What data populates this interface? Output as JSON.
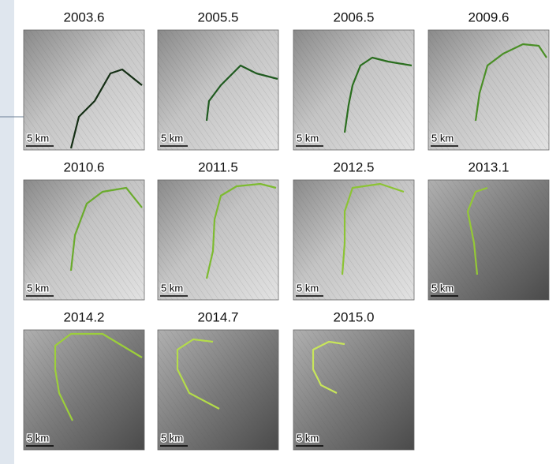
{
  "panels": [
    {
      "year": "2003.6",
      "scale": "5 km"
    },
    {
      "year": "2005.5",
      "scale": "5 km"
    },
    {
      "year": "2006.5",
      "scale": "5 km"
    },
    {
      "year": "2009.6",
      "scale": "5 km"
    },
    {
      "year": "2010.6",
      "scale": "5 km"
    },
    {
      "year": "2011.5",
      "scale": "5 km"
    },
    {
      "year": "2012.5",
      "scale": "5 km"
    },
    {
      "year": "2013.1",
      "scale": "5 km"
    },
    {
      "year": "2014.2",
      "scale": "5 km"
    },
    {
      "year": "2014.7",
      "scale": "5 km"
    },
    {
      "year": "2015.0",
      "scale": "5 km"
    }
  ]
}
